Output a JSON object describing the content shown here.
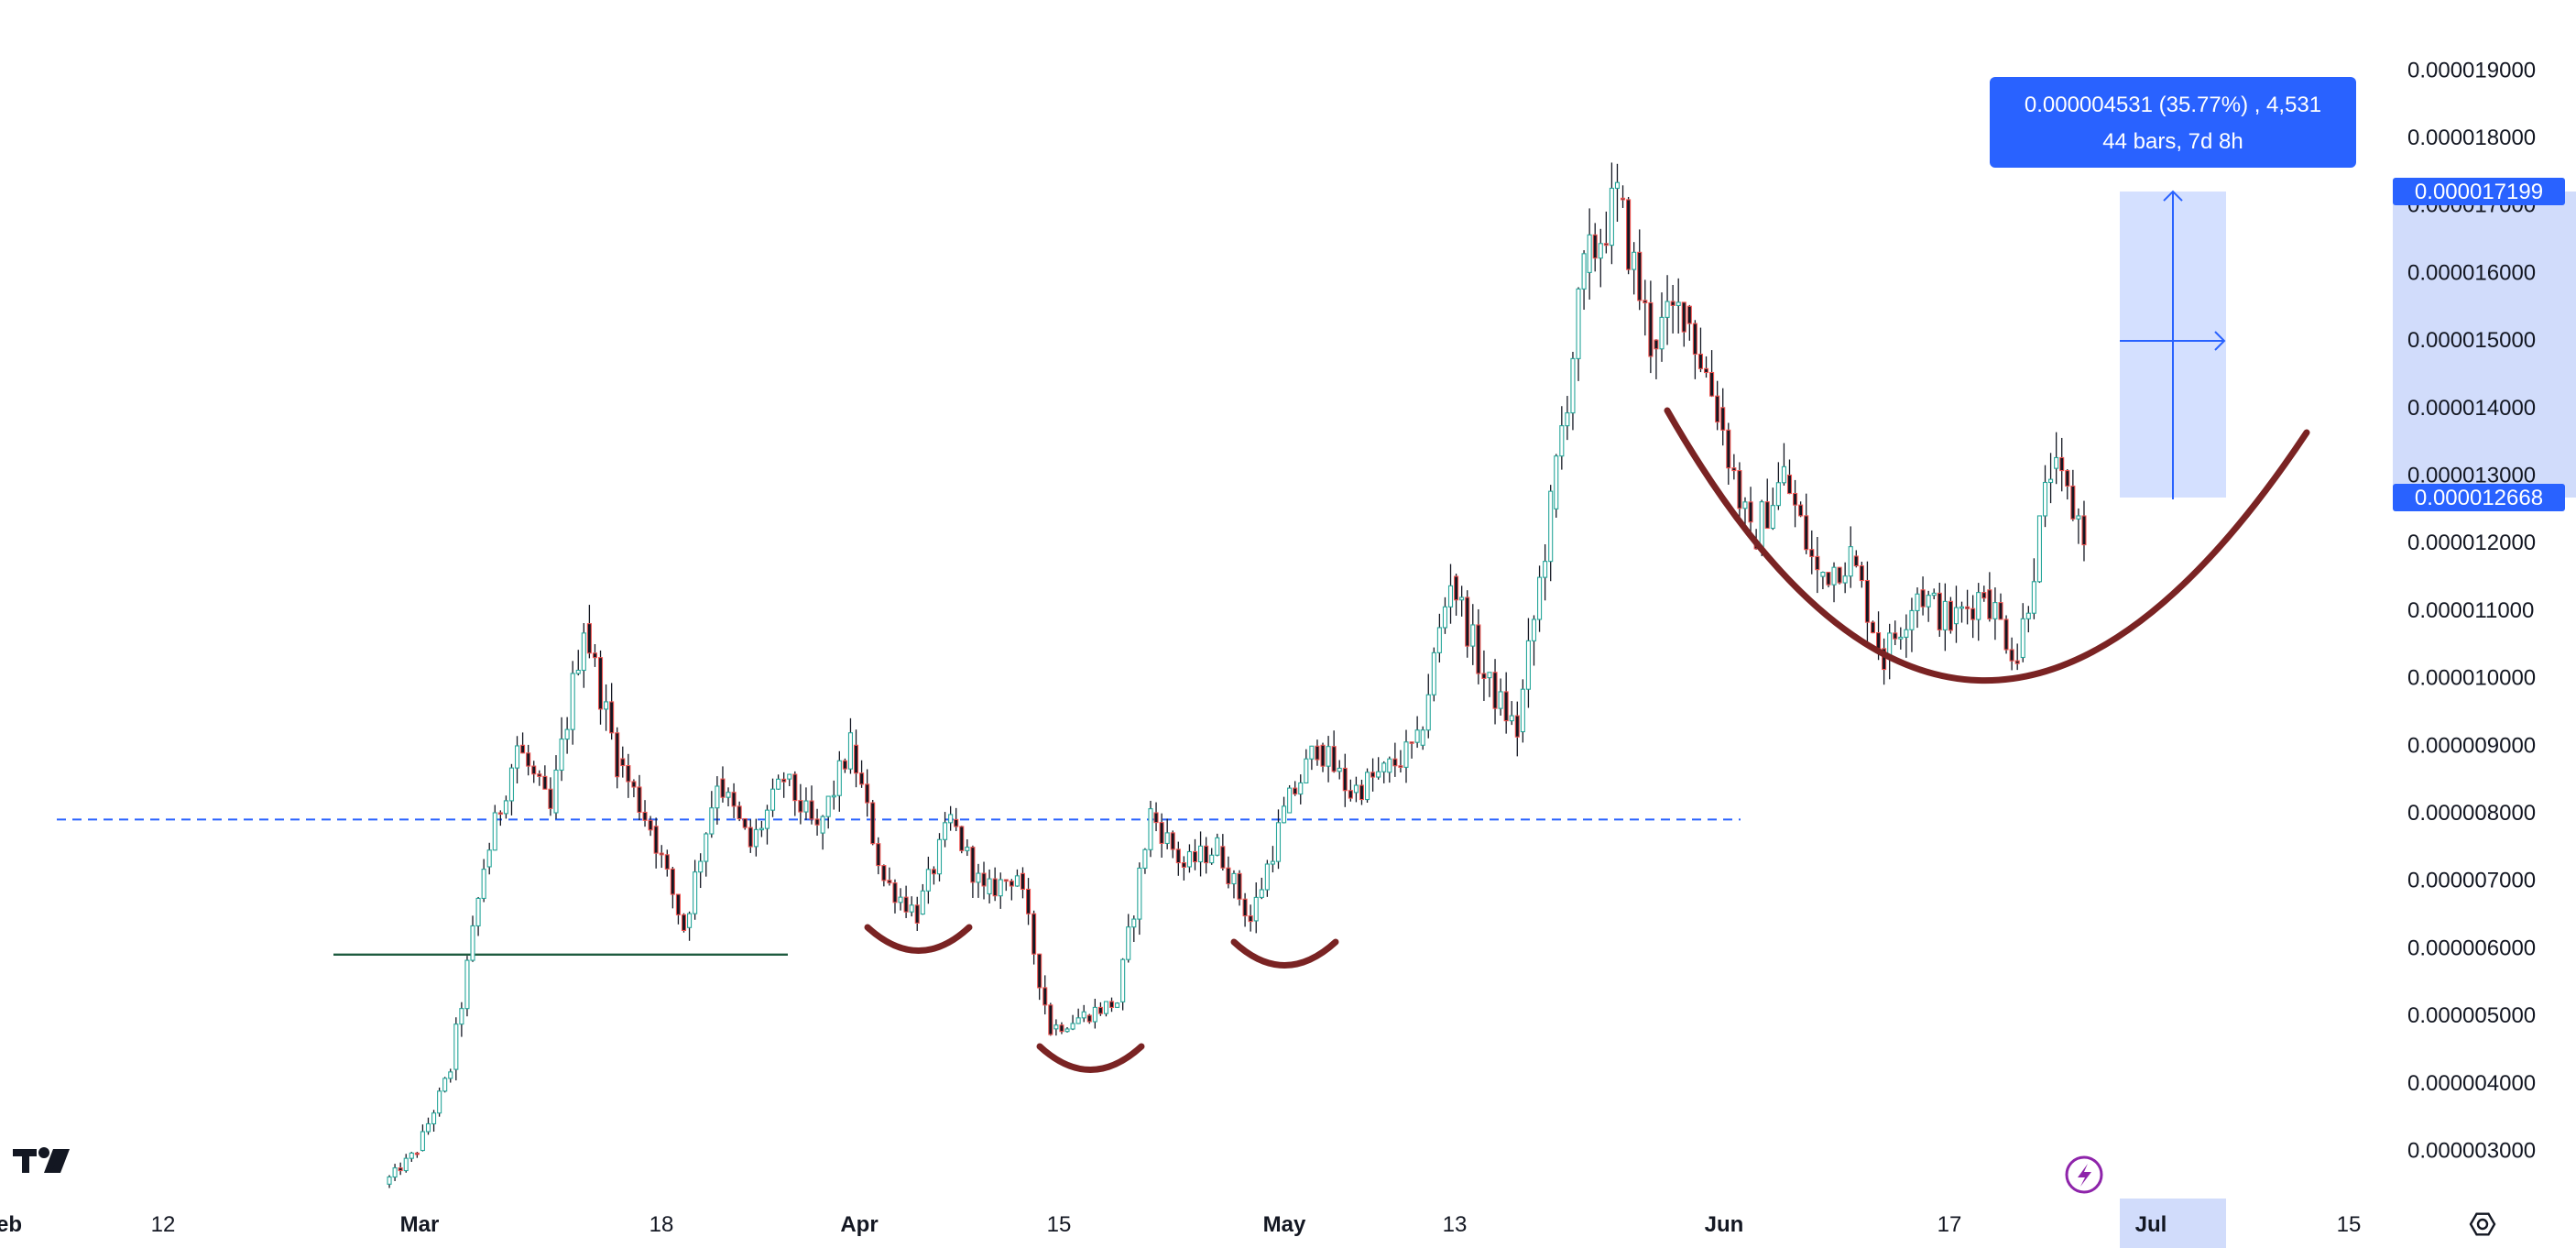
{
  "chart_data": {
    "type": "candlestick",
    "title": "",
    "xlabel": "",
    "ylabel": "",
    "ylim": [
      2.4e-06,
      1.96e-05
    ],
    "y_ticks": [
      "0.000019000",
      "0.000018000",
      "0.000017000",
      "0.000016000",
      "0.000015000",
      "0.000014000",
      "0.000013000",
      "0.000012000",
      "0.000011000",
      "0.000010000",
      "0.000009000",
      "0.000008000",
      "0.000007000",
      "0.000006000",
      "0.000005000",
      "0.000004000",
      "0.000003000"
    ],
    "x_ticks": [
      {
        "label": "eb",
        "bold": true
      },
      {
        "label": "12",
        "bold": false
      },
      {
        "label": "Mar",
        "bold": true
      },
      {
        "label": "18",
        "bold": false
      },
      {
        "label": "Apr",
        "bold": true
      },
      {
        "label": "15",
        "bold": false
      },
      {
        "label": "May",
        "bold": true
      },
      {
        "label": "13",
        "bold": false
      },
      {
        "label": "Jun",
        "bold": true
      },
      {
        "label": "17",
        "bold": false
      },
      {
        "label": "Jul",
        "bold": true
      },
      {
        "label": "15",
        "bold": false
      }
    ],
    "price_path": [
      [
        2.5e-06,
        3e-06
      ],
      [
        3e-06,
        4.2e-06
      ],
      [
        4.2e-06,
        7.2e-06
      ],
      [
        7.2e-06,
        9e-06
      ],
      [
        9e-06,
        8e-06
      ],
      [
        8e-06,
        1.08e-05
      ],
      [
        1.08e-05,
        8.8e-06
      ],
      [
        8.8e-06,
        7.8e-06
      ],
      [
        7.8e-06,
        6.3e-06
      ],
      [
        6.3e-06,
        8.5e-06
      ],
      [
        8.5e-06,
        7.5e-06
      ],
      [
        7.5e-06,
        8.5e-06
      ],
      [
        8.5e-06,
        7.7e-06
      ],
      [
        7.7e-06,
        9e-06
      ],
      [
        9e-06,
        7e-06
      ],
      [
        7e-06,
        6.5e-06
      ],
      [
        6.5e-06,
        7.9e-06
      ],
      [
        7.9e-06,
        6.8e-06
      ],
      [
        6.8e-06,
        7.1e-06
      ],
      [
        7.1e-06,
        4.8e-06
      ],
      [
        4.8e-06,
        5e-06
      ],
      [
        5e-06,
        5.2e-06
      ],
      [
        5.2e-06,
        8e-06
      ],
      [
        8e-06,
        7.2e-06
      ],
      [
        7.2e-06,
        7.5e-06
      ],
      [
        7.5e-06,
        6.4e-06
      ],
      [
        6.4e-06,
        8e-06
      ],
      [
        8e-06,
        9e-06
      ],
      [
        9e-06,
        8.3e-06
      ],
      [
        8.3e-06,
        8.6e-06
      ],
      [
        8.6e-06,
        9e-06
      ],
      [
        9e-06,
        1.15e-05
      ],
      [
        1.15e-05,
        1e-05
      ],
      [
        1e-05,
        9.2e-06
      ],
      [
        9.2e-06,
        1.25e-05
      ],
      [
        1.25e-05,
        1.6e-05
      ],
      [
        1.6e-05,
        1.71e-05
      ],
      [
        1.71e-05,
        1.5e-05
      ],
      [
        1.5e-05,
        1.55e-05
      ],
      [
        1.55e-05,
        1.4e-05
      ],
      [
        1.4e-05,
        1.2e-05
      ],
      [
        1.2e-05,
        1.3e-05
      ],
      [
        1.3e-05,
        1.15e-05
      ],
      [
        1.15e-05,
        1.18e-05
      ],
      [
        1.18e-05,
        1.03e-05
      ],
      [
        1.03e-05,
        1.13e-05
      ],
      [
        1.13e-05,
        1.08e-05
      ],
      [
        1.08e-05,
        1.13e-05
      ],
      [
        1.13e-05,
        1.03e-05
      ],
      [
        1.03e-05,
        1.31e-05
      ],
      [
        1.31e-05,
        1.22e-05
      ]
    ],
    "horizontal_lines": [
      {
        "price": 7.9e-06,
        "style": "dashed",
        "color": "#2962ff"
      },
      {
        "price": 5.9e-06,
        "style": "solid",
        "color": "#1e5b3f"
      }
    ],
    "pattern_annotations": [
      {
        "shape": "cup",
        "color": "#7a2323",
        "description": "small arc"
      },
      {
        "shape": "cup",
        "color": "#7a2323",
        "description": "small arc"
      },
      {
        "shape": "cup",
        "color": "#7a2323",
        "description": "small arc"
      },
      {
        "shape": "cup",
        "color": "#7a2323",
        "description": "large arc"
      }
    ],
    "measure_tool": {
      "change": "0.000004531 (35.77%) , 4,531",
      "bars": "44 bars, 7d 8h",
      "start_price": 1.2668e-05,
      "end_price": 1.7199e-05
    },
    "price_labels": [
      {
        "text": "0.000017199",
        "value": 1.7199e-05
      },
      {
        "text": "0.000012668",
        "value": 1.2668e-05
      }
    ],
    "colors": {
      "up": "#26a69a",
      "down": "#ef5350",
      "wick": "#131722",
      "accent": "#2962ff",
      "annotation": "#7a2323",
      "range_fill": "#d1dcfb"
    }
  },
  "icons": {
    "logo": "tradingview-logo-icon",
    "lightning": "lightning-icon",
    "settings": "gear-icon"
  }
}
